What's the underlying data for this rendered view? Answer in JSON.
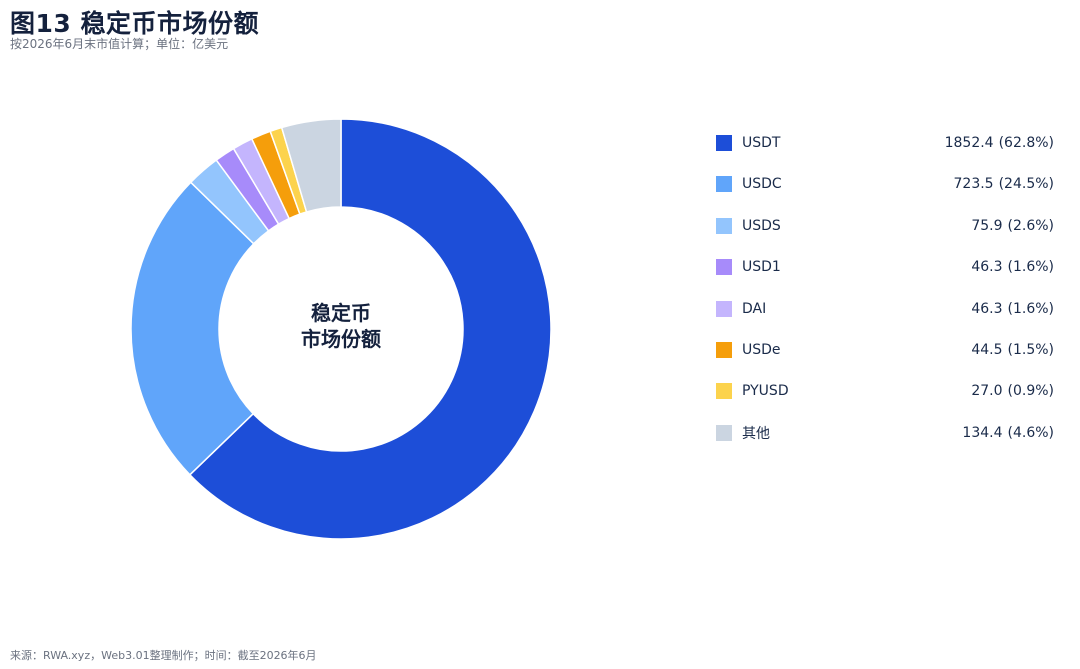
{
  "header": {
    "title": "图13 稳定币市场份额",
    "subtitle": "按2026年6月末市值计算；单位：亿美元"
  },
  "chart_data": {
    "type": "pie",
    "donut": true,
    "center_label": [
      "稳定币",
      "市场份额"
    ],
    "legend_position": "right",
    "slices": [
      {
        "name": "USDT",
        "value": 1852.4,
        "percent_label": "(62.8%)",
        "color": "#1d4ed8"
      },
      {
        "name": "USDC",
        "value": 723.5,
        "percent_label": "(24.5%)",
        "color": "#60a5fa"
      },
      {
        "name": "USDS",
        "value": 75.9,
        "percent_label": "(2.6%)",
        "color": "#93c5fd"
      },
      {
        "name": "USD1",
        "value": 46.3,
        "percent_label": "(1.6%)",
        "color": "#a78bfa"
      },
      {
        "name": "DAI",
        "value": 46.3,
        "percent_label": "(1.6%)",
        "color": "#c4b5fd"
      },
      {
        "name": "USDe",
        "value": 44.5,
        "percent_label": "(1.5%)",
        "color": "#f59e0b"
      },
      {
        "name": "PYUSD",
        "value": 27.0,
        "percent_label": "(0.9%)",
        "color": "#fcd34d"
      },
      {
        "name": "其他",
        "value": 134.4,
        "percent_label": "(4.6%)",
        "color": "#cbd5e1"
      }
    ]
  },
  "footer": {
    "source": "来源：RWA.xyz，Web3.01整理制作；时间：截至2026年6月"
  }
}
